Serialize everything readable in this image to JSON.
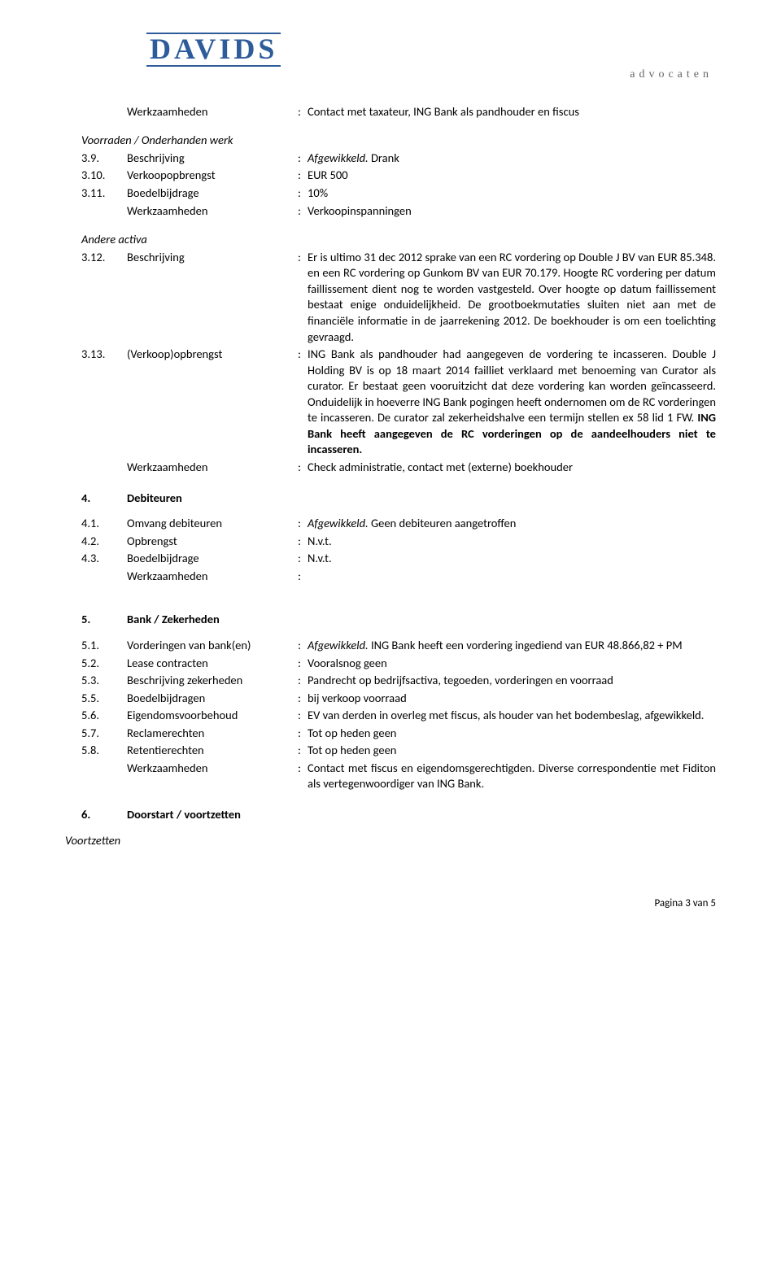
{
  "logo": {
    "top": "DAVIDS",
    "sub": "advocaten"
  },
  "header_row": {
    "label": "Werkzaamheden",
    "value": "Contact met taxateur, ING Bank als pandhouder en fiscus"
  },
  "voorraden": {
    "heading": "Voorraden / Onderhanden werk",
    "r1": {
      "num": "3.9.",
      "label": "Beschrijving",
      "ital": "Afgewikkeld.",
      "rest": " Drank"
    },
    "r2": {
      "num": "3.10.",
      "label": "Verkoopopbrengst",
      "value": "EUR 500"
    },
    "r3": {
      "num": "3.11.",
      "label": "Boedelbijdrage",
      "value": "10%"
    },
    "r4": {
      "label": "Werkzaamheden",
      "value": "Verkoopinspanningen"
    }
  },
  "andere": {
    "heading": "Andere activa",
    "r1": {
      "num": "3.12.",
      "label": "Beschrijving",
      "value": "Er is ultimo 31 dec 2012 sprake van een RC vordering op Double J BV van EUR 85.348. en een RC vordering op Gunkom BV van EUR 70.179. Hoogte RC vordering per datum faillissement dient nog te worden vastgesteld. Over hoogte op datum faillissement bestaat enige onduidelijkheid. De grootboekmutaties sluiten niet aan met de financiële informatie in de jaarrekening 2012. De boekhouder is om een toelichting gevraagd."
    },
    "r2": {
      "num": "3.13.",
      "label": "(Verkoop)opbrengst",
      "value_a": "ING Bank als pandhouder had aangegeven de vordering te incasseren. Double J Holding BV is op 18 maart 2014 failliet verklaard met benoeming van Curator als curator. Er bestaat geen vooruitzicht dat deze vordering kan worden geïncasseerd. Onduidelijk in hoeverre ING Bank pogingen heeft ondernomen om de RC vorderingen te incasseren. De curator zal zekerheidshalve een termijn stellen ex 58 lid 1 FW. ",
      "value_b": "ING Bank heeft aangegeven de RC  vorderingen op de aandeelhouders niet te incasseren."
    },
    "r3": {
      "label": "Werkzaamheden",
      "value": "Check administratie, contact met (externe) boekhouder"
    }
  },
  "s4": {
    "num": "4.",
    "title": "Debiteuren",
    "r1": {
      "num": "4.1.",
      "label": "Omvang debiteuren",
      "ital": "Afgewikkeld.",
      "rest": " Geen debiteuren aangetroffen"
    },
    "r2": {
      "num": "4.2.",
      "label": "Opbrengst",
      "value": "N.v.t."
    },
    "r3": {
      "num": "4.3.",
      "label": "Boedelbijdrage",
      "value": "N.v.t."
    },
    "r4": {
      "label": "Werkzaamheden",
      "value": ""
    }
  },
  "s5": {
    "num": "5.",
    "title": "Bank / Zekerheden",
    "r1": {
      "num": "5.1.",
      "label": "Vorderingen van bank(en)",
      "ital": "Afgewikkeld.",
      "rest": " ING Bank heeft een vordering ingediend van EUR 48.866,82 + PM"
    },
    "r2": {
      "num": "5.2.",
      "label": "Lease contracten",
      "value": "Vooralsnog geen"
    },
    "r3": {
      "num": "5.3.",
      "label": "Beschrijving zekerheden",
      "value": "Pandrecht op bedrijfsactiva, tegoeden, vorderingen en voorraad"
    },
    "r4": {
      "num": "5.5.",
      "label": "Boedelbijdragen",
      "value": "bij verkoop voorraad"
    },
    "r5": {
      "num": "5.6.",
      "label": "Eigendomsvoorbehoud",
      "value": "EV van derden in overleg met fiscus, als houder van het bodembeslag, afgewikkeld."
    },
    "r6": {
      "num": "5.7.",
      "label": "Reclamerechten",
      "value": "Tot op heden geen"
    },
    "r7": {
      "num": "5.8.",
      "label": "Retentierechten",
      "value": "Tot op heden geen"
    },
    "r8": {
      "label": "Werkzaamheden",
      "value": "Contact met fiscus en eigendomsgerechtigden. Diverse correspondentie met Fiditon als vertegenwoordiger van ING Bank."
    }
  },
  "s6": {
    "num": "6.",
    "title": "Doorstart / voortzetten",
    "sub": "Voortzetten"
  },
  "footer": "Pagina 3 van 5"
}
